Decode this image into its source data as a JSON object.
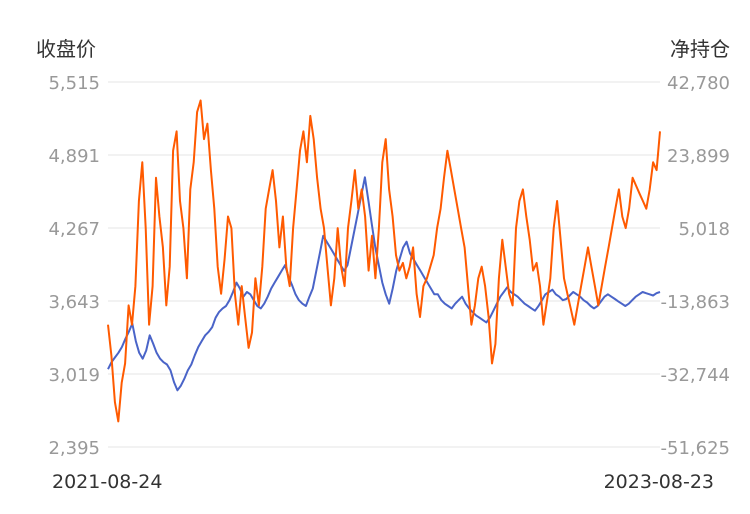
{
  "chart_data": {
    "type": "line",
    "left_axis_title": "收盘价",
    "right_axis_title": "净持仓",
    "left_ticks": [
      "5,515",
      "4,891",
      "4,267",
      "3,643",
      "3,019",
      "2,395"
    ],
    "right_ticks": [
      "42,780",
      "23,899",
      "5,018",
      "-13,863",
      "-32,744",
      "-51,625"
    ],
    "left_ylim": [
      2395,
      5515
    ],
    "right_ylim": [
      -51625,
      42780
    ],
    "x_labels": [
      "2021-08-24",
      "2023-08-23"
    ],
    "grid": true,
    "colors": {
      "close": "#4a64c8",
      "net": "#ff5a00",
      "grid": "#e6e6e6",
      "tick": "#999999",
      "axis_title": "#333333"
    },
    "series": [
      {
        "axis": "left",
        "color": "#4a64c8",
        "values": [
          3060,
          3120,
          3160,
          3200,
          3250,
          3320,
          3380,
          3450,
          3300,
          3200,
          3150,
          3220,
          3350,
          3280,
          3200,
          3150,
          3120,
          3100,
          3050,
          2950,
          2880,
          2920,
          2980,
          3050,
          3100,
          3180,
          3250,
          3300,
          3350,
          3380,
          3420,
          3500,
          3550,
          3580,
          3600,
          3650,
          3720,
          3800,
          3750,
          3680,
          3720,
          3700,
          3650,
          3600,
          3580,
          3620,
          3680,
          3750,
          3800,
          3850,
          3900,
          3950,
          3850,
          3780,
          3700,
          3650,
          3620,
          3600,
          3680,
          3750,
          3900,
          4050,
          4200,
          4150,
          4100,
          4050,
          4000,
          3950,
          3900,
          3950,
          4100,
          4250,
          4400,
          4550,
          4700,
          4500,
          4300,
          4100,
          3950,
          3800,
          3700,
          3620,
          3750,
          3900,
          4000,
          4100,
          4150,
          4050,
          4000,
          3950,
          3900,
          3850,
          3800,
          3750,
          3700,
          3700,
          3650,
          3620,
          3600,
          3580,
          3620,
          3650,
          3680,
          3620,
          3580,
          3550,
          3520,
          3500,
          3480,
          3460,
          3500,
          3560,
          3620,
          3680,
          3720,
          3760,
          3720,
          3700,
          3680,
          3650,
          3620,
          3600,
          3580,
          3560,
          3600,
          3650,
          3700,
          3720,
          3740,
          3700,
          3680,
          3650,
          3660,
          3690,
          3720,
          3700,
          3680,
          3650,
          3630,
          3600,
          3580,
          3600,
          3640,
          3680,
          3700,
          3680,
          3660,
          3640,
          3620,
          3600,
          3620,
          3650,
          3680,
          3700,
          3720,
          3710,
          3700,
          3690,
          3710,
          3720
        ]
      },
      {
        "axis": "right",
        "color": "#ff5a00",
        "values": [
          -20000,
          -28000,
          -40000,
          -45000,
          -35000,
          -30000,
          -15000,
          -20000,
          -10000,
          12000,
          22000,
          5000,
          -20000,
          -10000,
          18000,
          8000,
          0,
          -15000,
          -5000,
          25000,
          30000,
          12000,
          5000,
          -8000,
          15000,
          22000,
          35000,
          38000,
          28000,
          32000,
          20000,
          10000,
          -5000,
          -12000,
          -3000,
          8000,
          5000,
          -12000,
          -20000,
          -10000,
          -18000,
          -26000,
          -22000,
          -8000,
          -15000,
          -5000,
          10000,
          15000,
          20000,
          12000,
          0,
          8000,
          -5000,
          -10000,
          5000,
          15000,
          25000,
          30000,
          22000,
          34000,
          28000,
          18000,
          10000,
          5000,
          -5000,
          -15000,
          -8000,
          5000,
          -5000,
          -10000,
          5000,
          12000,
          20000,
          10000,
          15000,
          8000,
          -6000,
          3000,
          -8000,
          5000,
          22000,
          28000,
          15000,
          8000,
          -2000,
          -6000,
          -4000,
          -8000,
          -5000,
          0,
          -12000,
          -18000,
          -10000,
          -8000,
          -5000,
          -2000,
          5000,
          10000,
          18000,
          25000,
          20000,
          15000,
          10000,
          5000,
          0,
          -10000,
          -20000,
          -15000,
          -8000,
          -5000,
          -10000,
          -18000,
          -30000,
          -25000,
          -8000,
          2000,
          -5000,
          -12000,
          -15000,
          5000,
          12000,
          15000,
          8000,
          2000,
          -6000,
          -4000,
          -10000,
          -20000,
          -14000,
          -8000,
          5000,
          12000,
          2000,
          -8000,
          -12000,
          -16000,
          -20000,
          -15000,
          -10000,
          -5000,
          0,
          -5000,
          -10000,
          -15000,
          -10000,
          -5000,
          0,
          5000,
          10000,
          15000,
          8000,
          5000,
          10000,
          18000,
          16000,
          14000,
          12000,
          10000,
          15000,
          22000,
          20000,
          30000
        ]
      }
    ]
  }
}
